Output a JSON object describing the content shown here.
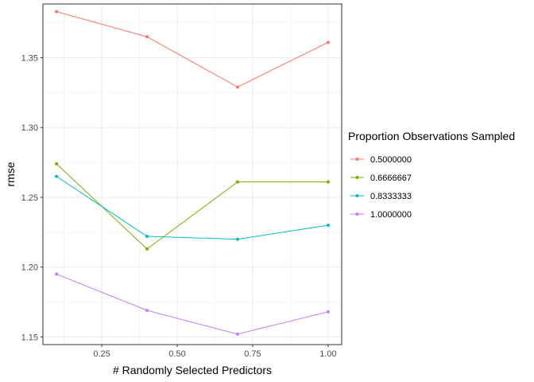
{
  "chart_data": {
    "type": "line",
    "title": "",
    "xlabel": "# Randomly Selected Predictors",
    "ylabel": "rmse",
    "xlim": [
      0.055,
      1.045
    ],
    "ylim": [
      1.1445,
      1.3885
    ],
    "x_ticks": [
      0.25,
      0.5,
      0.75,
      1.0
    ],
    "x_tick_labels": [
      "0.25",
      "0.50",
      "0.75",
      "1.00"
    ],
    "y_ticks": [
      1.15,
      1.2,
      1.25,
      1.3,
      1.35
    ],
    "y_tick_labels": [
      "1.15",
      "1.20",
      "1.25",
      "1.30",
      "1.35"
    ],
    "x": [
      0.1,
      0.4,
      0.7,
      1.0
    ],
    "grid": true,
    "legend": {
      "title": "Proportion Observations Sampled",
      "position": "right"
    },
    "series": [
      {
        "name": "0.5000000",
        "color": "#F8766D",
        "values": [
          1.383,
          1.365,
          1.329,
          1.361
        ]
      },
      {
        "name": "0.6666667",
        "color": "#7CAE00",
        "values": [
          1.274,
          1.213,
          1.261,
          1.261
        ]
      },
      {
        "name": "0.8333333",
        "color": "#00BFC4",
        "values": [
          1.265,
          1.222,
          1.22,
          1.23
        ]
      },
      {
        "name": "1.0000000",
        "color": "#C77CFF",
        "values": [
          1.195,
          1.169,
          1.152,
          1.168
        ]
      }
    ]
  }
}
